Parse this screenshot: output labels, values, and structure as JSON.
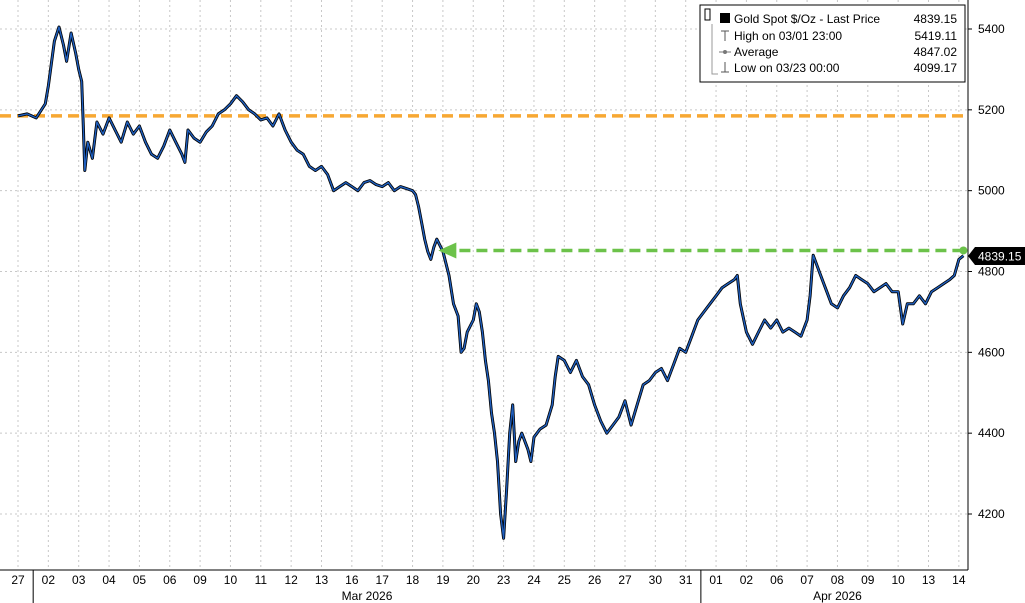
{
  "chart_data": {
    "type": "line",
    "legend": {
      "placement": "top-right",
      "rows": [
        {
          "icon": "black-square-icon",
          "label": "Gold Spot $/Oz - Last Price",
          "value": "4839.15"
        },
        {
          "icon": "high-marker-icon",
          "label": "High on 03/01 23:00",
          "value": "5419.11"
        },
        {
          "icon": "average-marker-icon",
          "label": "Average",
          "value": "4847.02"
        },
        {
          "icon": "low-marker-icon",
          "label": "Low on 03/23 00:00",
          "value": "4099.17"
        }
      ]
    },
    "last_price_label": "4839.15",
    "y_ticks": [
      "5400",
      "5200",
      "5000",
      "4800",
      "4600",
      "4400",
      "4200"
    ],
    "ylim": [
      4060,
      5480
    ],
    "x_ticks": [
      "27",
      "02",
      "03",
      "04",
      "05",
      "06",
      "09",
      "10",
      "11",
      "12",
      "13",
      "16",
      "17",
      "18",
      "19",
      "20",
      "23",
      "24",
      "25",
      "26",
      "27",
      "30",
      "31",
      "01",
      "02",
      "06",
      "07",
      "08",
      "09",
      "10",
      "13",
      "14"
    ],
    "month_labels": [
      {
        "label": "Mar 2026",
        "start_index": 1,
        "end_index": 22
      },
      {
        "label": "Apr 2026",
        "start_index": 23,
        "end_index": 31
      }
    ],
    "grid": true,
    "series": [
      {
        "color": "#1f5fbf",
        "points": [
          [
            0.0,
            5185
          ],
          [
            0.3,
            5190
          ],
          [
            0.6,
            5180
          ],
          [
            0.9,
            5215
          ],
          [
            1.0,
            5260
          ],
          [
            1.2,
            5370
          ],
          [
            1.35,
            5405
          ],
          [
            1.5,
            5360
          ],
          [
            1.6,
            5320
          ],
          [
            1.75,
            5390
          ],
          [
            1.9,
            5340
          ],
          [
            2.0,
            5300
          ],
          [
            2.1,
            5270
          ],
          [
            2.15,
            5160
          ],
          [
            2.2,
            5050
          ],
          [
            2.3,
            5120
          ],
          [
            2.45,
            5080
          ],
          [
            2.6,
            5170
          ],
          [
            2.8,
            5140
          ],
          [
            3.0,
            5180
          ],
          [
            3.2,
            5150
          ],
          [
            3.4,
            5120
          ],
          [
            3.6,
            5170
          ],
          [
            3.8,
            5140
          ],
          [
            4.0,
            5160
          ],
          [
            4.2,
            5120
          ],
          [
            4.4,
            5090
          ],
          [
            4.6,
            5080
          ],
          [
            4.8,
            5110
          ],
          [
            5.0,
            5150
          ],
          [
            5.2,
            5120
          ],
          [
            5.4,
            5090
          ],
          [
            5.5,
            5070
          ],
          [
            5.6,
            5150
          ],
          [
            5.8,
            5130
          ],
          [
            6.0,
            5120
          ],
          [
            6.2,
            5145
          ],
          [
            6.4,
            5160
          ],
          [
            6.6,
            5190
          ],
          [
            6.8,
            5200
          ],
          [
            7.0,
            5215
          ],
          [
            7.2,
            5235
          ],
          [
            7.4,
            5220
          ],
          [
            7.6,
            5200
          ],
          [
            7.8,
            5190
          ],
          [
            8.0,
            5175
          ],
          [
            8.2,
            5180
          ],
          [
            8.4,
            5160
          ],
          [
            8.6,
            5190
          ],
          [
            8.8,
            5150
          ],
          [
            9.0,
            5120
          ],
          [
            9.2,
            5100
          ],
          [
            9.4,
            5090
          ],
          [
            9.6,
            5060
          ],
          [
            9.8,
            5050
          ],
          [
            10.0,
            5060
          ],
          [
            10.2,
            5040
          ],
          [
            10.4,
            5000
          ],
          [
            10.6,
            5010
          ],
          [
            10.8,
            5020
          ],
          [
            11.0,
            5010
          ],
          [
            11.2,
            5000
          ],
          [
            11.4,
            5020
          ],
          [
            11.6,
            5025
          ],
          [
            11.8,
            5015
          ],
          [
            12.0,
            5010
          ],
          [
            12.2,
            5020
          ],
          [
            12.4,
            5000
          ],
          [
            12.6,
            5010
          ],
          [
            12.8,
            5005
          ],
          [
            13.0,
            5000
          ],
          [
            13.1,
            4990
          ],
          [
            13.2,
            4960
          ],
          [
            13.3,
            4920
          ],
          [
            13.4,
            4880
          ],
          [
            13.5,
            4850
          ],
          [
            13.6,
            4830
          ],
          [
            13.7,
            4860
          ],
          [
            13.8,
            4880
          ],
          [
            14.0,
            4850
          ],
          [
            14.2,
            4790
          ],
          [
            14.35,
            4720
          ],
          [
            14.5,
            4690
          ],
          [
            14.6,
            4600
          ],
          [
            14.7,
            4610
          ],
          [
            14.8,
            4650
          ],
          [
            15.0,
            4680
          ],
          [
            15.1,
            4720
          ],
          [
            15.2,
            4700
          ],
          [
            15.3,
            4650
          ],
          [
            15.4,
            4580
          ],
          [
            15.5,
            4530
          ],
          [
            15.6,
            4450
          ],
          [
            15.7,
            4400
          ],
          [
            15.8,
            4330
          ],
          [
            15.9,
            4200
          ],
          [
            16.0,
            4140
          ],
          [
            16.1,
            4260
          ],
          [
            16.2,
            4400
          ],
          [
            16.3,
            4470
          ],
          [
            16.4,
            4330
          ],
          [
            16.5,
            4380
          ],
          [
            16.6,
            4400
          ],
          [
            16.8,
            4360
          ],
          [
            16.9,
            4330
          ],
          [
            17.0,
            4390
          ],
          [
            17.2,
            4410
          ],
          [
            17.4,
            4420
          ],
          [
            17.6,
            4470
          ],
          [
            17.7,
            4540
          ],
          [
            17.8,
            4590
          ],
          [
            18.0,
            4580
          ],
          [
            18.2,
            4550
          ],
          [
            18.4,
            4580
          ],
          [
            18.6,
            4540
          ],
          [
            18.8,
            4520
          ],
          [
            19.0,
            4470
          ],
          [
            19.2,
            4430
          ],
          [
            19.4,
            4400
          ],
          [
            19.6,
            4420
          ],
          [
            19.8,
            4440
          ],
          [
            20.0,
            4480
          ],
          [
            20.2,
            4420
          ],
          [
            20.4,
            4470
          ],
          [
            20.6,
            4520
          ],
          [
            20.8,
            4530
          ],
          [
            21.0,
            4550
          ],
          [
            21.2,
            4560
          ],
          [
            21.4,
            4530
          ],
          [
            21.6,
            4570
          ],
          [
            21.8,
            4610
          ],
          [
            22.0,
            4600
          ],
          [
            22.2,
            4640
          ],
          [
            22.4,
            4680
          ],
          [
            22.6,
            4700
          ],
          [
            22.8,
            4720
          ],
          [
            23.0,
            4740
          ],
          [
            23.2,
            4760
          ],
          [
            23.4,
            4770
          ],
          [
            23.6,
            4780
          ],
          [
            23.7,
            4790
          ],
          [
            23.8,
            4720
          ],
          [
            24.0,
            4650
          ],
          [
            24.2,
            4620
          ],
          [
            24.4,
            4650
          ],
          [
            24.6,
            4680
          ],
          [
            24.8,
            4660
          ],
          [
            25.0,
            4680
          ],
          [
            25.2,
            4650
          ],
          [
            25.4,
            4660
          ],
          [
            25.6,
            4650
          ],
          [
            25.8,
            4640
          ],
          [
            26.0,
            4680
          ],
          [
            26.1,
            4740
          ],
          [
            26.2,
            4840
          ],
          [
            26.3,
            4820
          ],
          [
            26.4,
            4800
          ],
          [
            26.6,
            4760
          ],
          [
            26.8,
            4720
          ],
          [
            27.0,
            4710
          ],
          [
            27.2,
            4740
          ],
          [
            27.4,
            4760
          ],
          [
            27.6,
            4790
          ],
          [
            27.8,
            4780
          ],
          [
            28.0,
            4770
          ],
          [
            28.2,
            4750
          ],
          [
            28.4,
            4760
          ],
          [
            28.6,
            4770
          ],
          [
            28.8,
            4750
          ],
          [
            29.0,
            4750
          ],
          [
            29.15,
            4670
          ],
          [
            29.3,
            4720
          ],
          [
            29.5,
            4720
          ],
          [
            29.7,
            4740
          ],
          [
            29.9,
            4720
          ],
          [
            30.1,
            4750
          ],
          [
            30.3,
            4760
          ],
          [
            30.5,
            4770
          ],
          [
            30.7,
            4780
          ],
          [
            30.85,
            4790
          ],
          [
            31.0,
            4830
          ],
          [
            31.15,
            4839.15
          ]
        ]
      }
    ],
    "reference_lines": [
      {
        "type": "horizontal",
        "y": 5185,
        "color": "#f7a833",
        "style": "dashed"
      },
      {
        "type": "arrow",
        "from_x": 31.15,
        "to_x": 13.85,
        "y": 4852,
        "color": "#6cc24a",
        "style": "dashed"
      }
    ]
  }
}
